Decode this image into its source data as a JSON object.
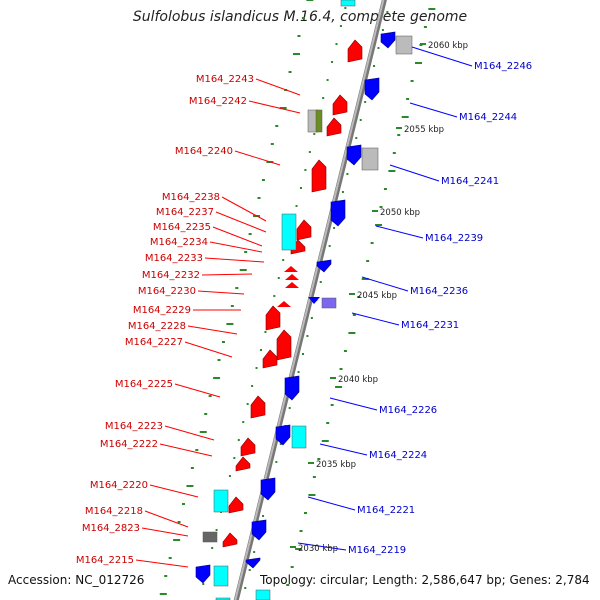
{
  "title": "Sulfolobus islandicus M.16.4, complete genome",
  "accession_text": "Accession: NC_012726",
  "summary_text": "Topology: circular; Length: 2,586,647 bp; Genes: 2,784",
  "colors": {
    "forward_gene": "#ff0000",
    "reverse_gene": "#0000ff",
    "forward_label": "#cc0000",
    "reverse_label": "#0000cc",
    "rna": "#00ffff",
    "pseudo_gray": "#bbbbbb",
    "misc_olive": "#6b8e23",
    "misc_purple": "#7b68ee",
    "tick": "#2a8a2a",
    "backbone": "#999999"
  },
  "forward_labels": [
    "M164_2243",
    "M164_2242",
    "M164_2240",
    "M164_2238",
    "M164_2237",
    "M164_2235",
    "M164_2234",
    "M164_2233",
    "M164_2232",
    "M164_2230",
    "M164_2229",
    "M164_2228",
    "M164_2227",
    "M164_2225",
    "M164_2223",
    "M164_2222",
    "M164_2220",
    "M164_2218",
    "M164_2823",
    "M164_2215"
  ],
  "reverse_labels": [
    "M164_2246",
    "M164_2244",
    "M164_2241",
    "M164_2239",
    "M164_2236",
    "M164_2231",
    "M164_2226",
    "M164_2224",
    "M164_2221",
    "M164_2219"
  ],
  "kbp_labels": [
    "2060 kbp",
    "2055 kbp",
    "2050 kbp",
    "2045 kbp",
    "2040 kbp",
    "2035 kbp",
    "2030 kbp"
  ]
}
